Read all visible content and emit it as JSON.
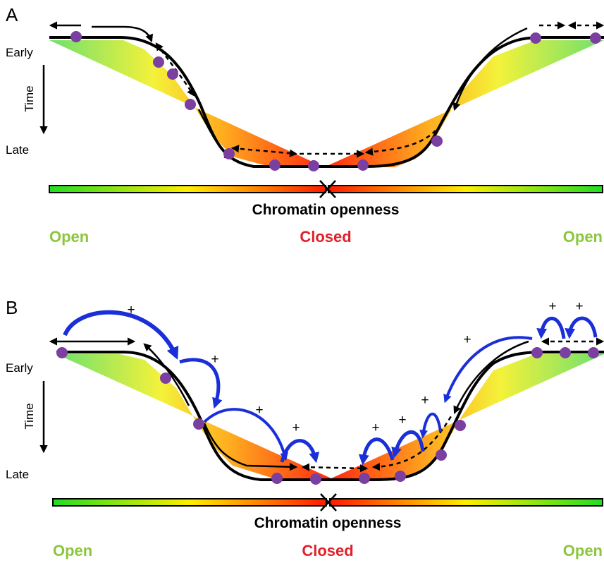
{
  "panels": [
    {
      "letter": "A",
      "early_label": "Early",
      "time_label": "Time",
      "late_label": "Late",
      "bar_title": "Chromatin openness",
      "left_state": "Open",
      "center_state": "Closed",
      "right_state": "Open",
      "plus_signs": []
    },
    {
      "letter": "B",
      "early_label": "Early",
      "time_label": "Time",
      "late_label": "Late",
      "bar_title": "Chromatin openness",
      "left_state": "Open",
      "center_state": "Closed",
      "right_state": "Open",
      "plus_signs": [
        "+",
        "+",
        "+",
        "+",
        "+",
        "+",
        "+",
        "+",
        "+",
        "+"
      ]
    }
  ],
  "colors": {
    "open": "#8cc63f",
    "closed": "#e0202a",
    "gradient_green": "#22dd22",
    "gradient_yellow": "#ffee00",
    "gradient_red": "#ff1a00",
    "nucleosome": "#7a3fa0",
    "positive_feedback_arrow": "#1a2fd8",
    "curve": "#000000"
  }
}
